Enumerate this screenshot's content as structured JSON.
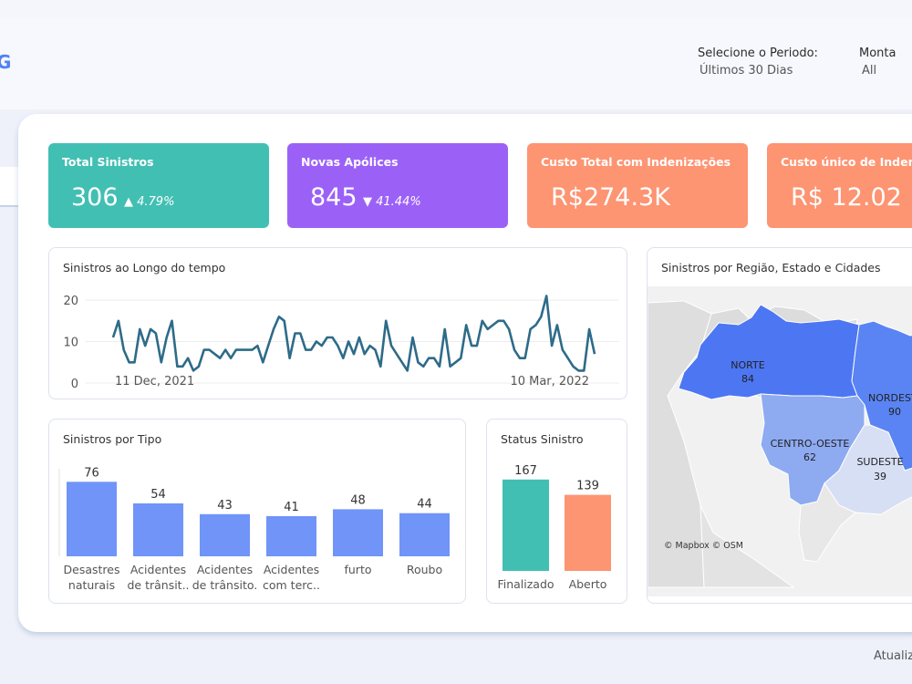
{
  "header": {
    "logo_fragment": "G",
    "period_filter": {
      "label": "Selecione o Periodo:",
      "value": "Últimos 30 Dias"
    },
    "second_filter": {
      "label": "Monta",
      "value": "All"
    }
  },
  "kpis": [
    {
      "title": "Total Sinistros",
      "value": "306",
      "delta": "▲ 4.79%",
      "color": "#42bfb3"
    },
    {
      "title": "Novas Apólices",
      "value": "845",
      "delta": "▼ 41.44%",
      "color": "#9b61f7"
    },
    {
      "title": "Custo Total com Indenizações",
      "value": "R$274.3K",
      "delta": "",
      "color": "#fd9472"
    },
    {
      "title": "Custo único de Indenizaç",
      "value": "R$ 12.02",
      "delta": "",
      "color": "#fd9472"
    }
  ],
  "line_card": {
    "title": "Sinistros ao Longo do tempo"
  },
  "type_card": {
    "title": "Sinistros por Tipo"
  },
  "status_card": {
    "title": "Status Sinistro"
  },
  "map_card": {
    "title": "Sinistros por Região, Estado e Cidades",
    "credit": "© Mapbox © OSM",
    "regions": [
      {
        "name": "NORTE",
        "value": "84"
      },
      {
        "name": "NORDESTE",
        "value": "90"
      },
      {
        "name": "CENTRO-OESTE",
        "value": "62"
      },
      {
        "name": "SUDESTE",
        "value": "39"
      }
    ]
  },
  "footer": {
    "text": "Atualiz"
  },
  "chart_data": [
    {
      "type": "line",
      "title": "Sinistros ao Longo do tempo",
      "xlabel": "",
      "ylabel": "",
      "x_tick_labels": [
        "11 Dec, 2021",
        "10 Mar, 2022"
      ],
      "y_ticks": [
        "0",
        "10",
        "20"
      ],
      "ylim": [
        0,
        22
      ],
      "values": [
        11,
        15,
        8,
        5,
        5,
        13,
        9,
        13,
        12,
        5,
        11,
        15,
        4,
        4,
        6,
        3,
        4,
        8,
        8,
        7,
        6,
        8,
        6,
        8,
        8,
        8,
        8,
        9,
        5,
        9,
        13,
        16,
        15,
        6,
        12,
        12,
        8,
        8,
        10,
        9,
        11,
        11,
        9,
        6,
        10,
        7,
        11,
        7,
        9,
        8,
        4,
        15,
        9,
        7,
        5,
        3,
        11,
        5,
        4,
        6,
        6,
        4,
        13,
        4,
        5,
        6,
        14,
        9,
        9,
        15,
        13,
        14,
        15,
        15,
        13,
        8,
        6,
        6,
        13,
        14,
        16,
        21,
        9,
        14,
        8,
        6,
        4,
        3,
        3,
        13,
        7
      ]
    },
    {
      "type": "bar",
      "title": "Sinistros por Tipo",
      "categories": [
        [
          "Desastres",
          "naturais"
        ],
        [
          "Acidentes",
          "de trânsit.."
        ],
        [
          "Acidentes",
          "de trânsito."
        ],
        [
          "Acidentes",
          "com terc.."
        ],
        [
          "furto"
        ],
        [
          "Roubo"
        ]
      ],
      "values": [
        76,
        54,
        43,
        41,
        48,
        44
      ],
      "labels": [
        "76",
        "54",
        "43",
        "41",
        "48",
        "44"
      ],
      "color": "#7094f7",
      "ylim": [
        0,
        80
      ]
    },
    {
      "type": "bar",
      "title": "Status Sinistro",
      "categories": [
        [
          "Finalizado"
        ],
        [
          "Aberto"
        ]
      ],
      "values": [
        167,
        139
      ],
      "labels": [
        "167",
        "139"
      ],
      "colors": [
        "#42bfb3",
        "#fd9472"
      ],
      "ylim": [
        0,
        170
      ]
    }
  ]
}
